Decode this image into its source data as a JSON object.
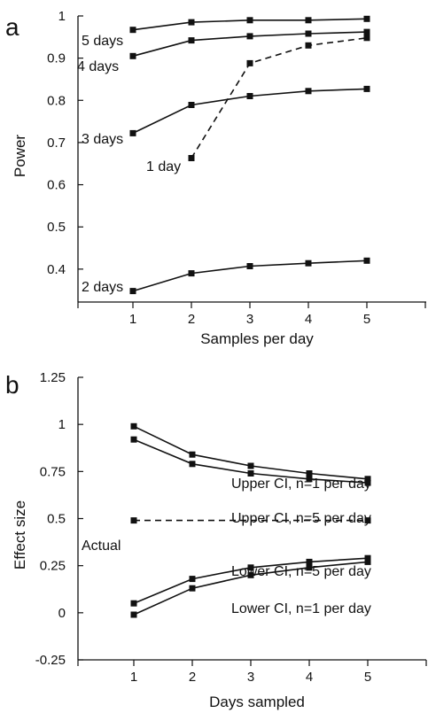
{
  "chart_data": [
    {
      "panel": "a",
      "type": "line",
      "xlabel": "Samples per day",
      "ylabel": "Power",
      "xlim": [
        0,
        6
      ],
      "ylim": [
        0.3,
        1.0
      ],
      "xticks": [
        "1",
        "2",
        "3",
        "4",
        "5"
      ],
      "yticks": [
        "1",
        "0.9",
        "0.8",
        "0.7",
        "0.6",
        "0.5",
        "0.4"
      ],
      "grid": false,
      "legend": "none",
      "series": [
        {
          "name": "5 days",
          "style": "solid",
          "x": [
            1,
            2,
            3,
            4,
            5
          ],
          "values": [
            0.967,
            0.985,
            0.99,
            0.99,
            0.993
          ]
        },
        {
          "name": "4 days",
          "style": "solid",
          "x": [
            1,
            2,
            3,
            4,
            5
          ],
          "values": [
            0.905,
            0.942,
            0.952,
            0.958,
            0.962
          ]
        },
        {
          "name": "1 day",
          "style": "dashed",
          "x": [
            2,
            3,
            4,
            5
          ],
          "values": [
            0.663,
            0.888,
            0.93,
            0.948
          ]
        },
        {
          "name": "3 days",
          "style": "solid",
          "x": [
            1,
            2,
            3,
            4,
            5
          ],
          "values": [
            0.722,
            0.789,
            0.81,
            0.822,
            0.827
          ]
        },
        {
          "name": "2 days",
          "style": "solid",
          "x": [
            1,
            2,
            3,
            4,
            5
          ],
          "values": [
            0.348,
            0.39,
            0.407,
            0.414,
            0.42
          ]
        }
      ]
    },
    {
      "panel": "b",
      "type": "line",
      "xlabel": "Days sampled",
      "ylabel": "Effect size",
      "xlim": [
        0,
        6
      ],
      "ylim": [
        -0.25,
        1.25
      ],
      "xticks": [
        "1",
        "2",
        "3",
        "4",
        "5"
      ],
      "yticks": [
        "1.25",
        "1",
        "0.75",
        "0.5",
        "0.25",
        "0",
        "-0.25"
      ],
      "grid": false,
      "legend": "none",
      "series": [
        {
          "name": "Upper CI, n=1 per day",
          "style": "solid",
          "x": [
            1,
            2,
            3,
            4,
            5
          ],
          "values": [
            0.99,
            0.84,
            0.78,
            0.74,
            0.71
          ]
        },
        {
          "name": "Upper CI, n=5 per day",
          "style": "solid",
          "x": [
            1,
            2,
            3,
            4,
            5
          ],
          "values": [
            0.92,
            0.79,
            0.74,
            0.71,
            0.69
          ]
        },
        {
          "name": "Actual",
          "style": "dashed",
          "x": [
            1,
            5
          ],
          "values": [
            0.49,
            0.49
          ]
        },
        {
          "name": "Lower CI, n=5 per day",
          "style": "solid",
          "x": [
            1,
            2,
            3,
            4,
            5
          ],
          "values": [
            0.05,
            0.18,
            0.24,
            0.27,
            0.29
          ]
        },
        {
          "name": "Lower CI, n=1 per day",
          "style": "solid",
          "x": [
            1,
            2,
            3,
            4,
            5
          ],
          "values": [
            -0.01,
            0.13,
            0.2,
            0.24,
            0.27
          ]
        }
      ]
    }
  ]
}
